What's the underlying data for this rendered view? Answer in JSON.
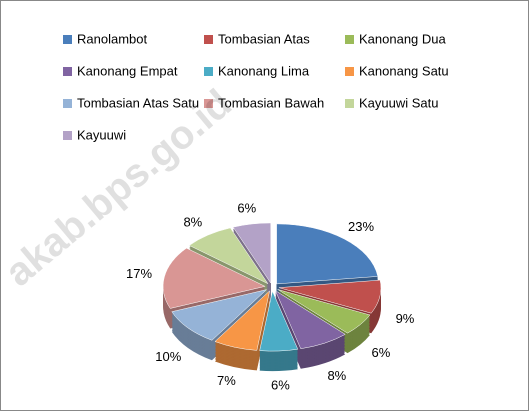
{
  "chart_data": {
    "type": "pie",
    "categories": [
      "Ranolambot",
      "Tombasian Atas",
      "Kanonang Dua",
      "Kanonang Empat",
      "Kanonang Lima",
      "Kanonang Satu",
      "Tombasian Atas Satu",
      "Tombasian Bawah",
      "Kayuuwi Satu",
      "Kayuuwi"
    ],
    "values": [
      23,
      9,
      6,
      8,
      6,
      7,
      10,
      17,
      8,
      6
    ],
    "value_labels": [
      "23%",
      "9%",
      "6%",
      "8%",
      "6%",
      "7%",
      "10%",
      "17%",
      "8%",
      "6%"
    ],
    "colors": [
      "#4a7ebb",
      "#c0504d",
      "#9bbb59",
      "#8064a2",
      "#4bacc6",
      "#f79646",
      "#95b3d7",
      "#d99694",
      "#c3d69b",
      "#b3a2c7"
    ],
    "legend": "top",
    "watermark": "akab.bps.go.id"
  }
}
